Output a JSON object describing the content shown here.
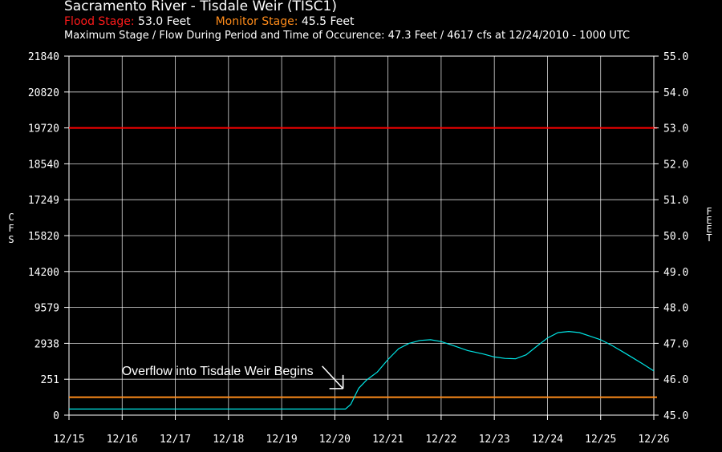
{
  "header": {
    "title": "Sacramento River - Tisdale Weir (TISC1)",
    "flood_label": "Flood Stage:",
    "flood_value": "53.0 Feet",
    "monitor_label": "Monitor Stage:",
    "monitor_value": "45.5 Feet",
    "max_line": "Maximum Stage / Flow During Period and Time of Occurence: 47.3 Feet / 4617 cfs at 12/24/2010 - 1000 UTC"
  },
  "colors": {
    "background": "#000000",
    "grid": "#ffffff",
    "flood": "#ff0000",
    "monitor": "#ff8c1a",
    "series": "#00e5e5",
    "text": "#ffffff"
  },
  "chart_data": {
    "type": "line",
    "grid": true,
    "xlabel": "",
    "ylabel_left": "CFS",
    "ylabel_right": "FEET",
    "x_ticks": [
      "12/15",
      "12/16",
      "12/17",
      "12/18",
      "12/19",
      "12/20",
      "12/21",
      "12/22",
      "12/23",
      "12/24",
      "12/25",
      "12/26"
    ],
    "y_left_ticks": [
      "0",
      "251",
      "2938",
      "9579",
      "14200",
      "15820",
      "17249",
      "18540",
      "19720",
      "20820",
      "21840"
    ],
    "y_right_ticks": [
      "45.0",
      "46.0",
      "47.0",
      "48.0",
      "49.0",
      "50.0",
      "51.0",
      "52.0",
      "53.0",
      "54.0",
      "55.0"
    ],
    "y_right_lim": [
      45.0,
      55.0
    ],
    "x_lim": [
      0,
      11
    ],
    "thresholds": [
      {
        "name": "Flood Stage",
        "value": 53.0
      },
      {
        "name": "Monitor Stage",
        "value": 45.5
      }
    ],
    "series": [
      {
        "x": [
          0,
          5.2,
          5.3,
          5.45,
          5.6,
          5.8,
          6.0,
          6.2,
          6.4,
          6.6,
          6.8,
          7.0,
          7.2,
          7.5,
          7.8,
          8.0,
          8.2,
          8.4,
          8.6,
          8.8,
          9.0,
          9.2,
          9.4,
          9.6,
          9.8,
          10.0,
          10.2,
          10.4,
          10.6,
          10.8,
          11.0
        ],
        "y": [
          45.17,
          45.17,
          45.3,
          45.75,
          45.98,
          46.2,
          46.55,
          46.85,
          47.0,
          47.08,
          47.1,
          47.05,
          46.95,
          46.8,
          46.7,
          46.62,
          46.58,
          46.57,
          46.68,
          46.92,
          47.15,
          47.3,
          47.33,
          47.3,
          47.2,
          47.1,
          46.95,
          46.78,
          46.6,
          46.42,
          46.23
        ]
      }
    ],
    "annotations": [
      {
        "text": "Overflow into Tisdale Weir Begins",
        "x": 5.2,
        "y": 45.65
      }
    ]
  }
}
